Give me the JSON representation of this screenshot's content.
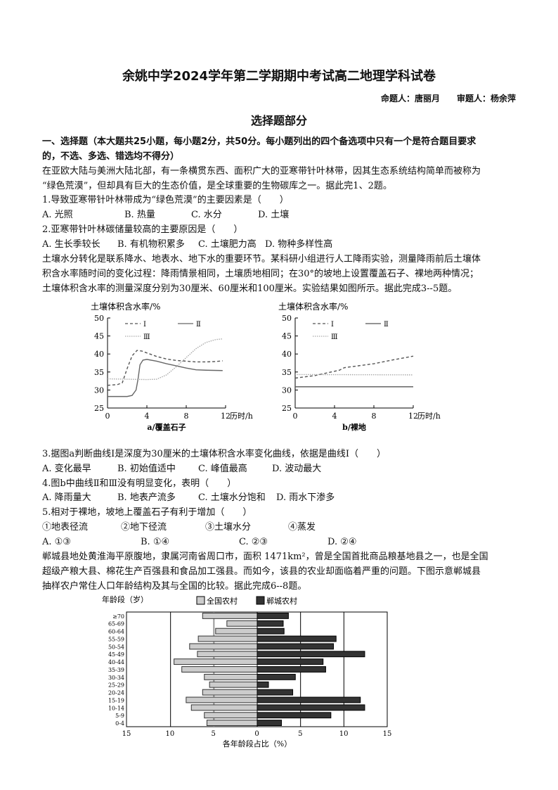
{
  "title": "余姚中学2024学年第二学期期中考试高二地理学科试卷",
  "authors": "命题人：唐丽月　　审题人：杨余萍",
  "section": "选择题部分",
  "instructions": [
    "一、选择题（本大题共25小题，每小题2分，共50分。每小题列出的四个备选项中只有一个是符合题目要求",
    "的，不选、多选、错选均不得分）"
  ],
  "passage1": [
    "在亚欧大陆与美洲大陆北部，有一条横贯东西、面积广大的亚寒带针叶林带，因其生态系统结构简单而被称为",
    "“绿色荒漠”，但却具有巨大的生态价值，是全球重要的生物碳库之一。据此完1、2题。"
  ],
  "q1": {
    "stem": "1.导致亚寒带针叶林带成为“绿色荒漠”的主要因素是（　　）",
    "options": [
      "A. 光照",
      "B. 热量",
      "C. 水分",
      "D. 土壤"
    ]
  },
  "q2": {
    "stem": "2.亚寒带针叶林碳储量较高的主要原因是（　　）",
    "options": [
      "A. 生长季较长",
      "B. 有机物积累多",
      "C. 土壤肥力高",
      "D. 物种多样性高"
    ]
  },
  "passage2": [
    "土壤水分转化是联系降水、地表水、地下水的重要环节。某科研小组进行人工降雨实验，测量降雨前后土壤体",
    "积含水率随时间的变化过程：降雨情景相同，土壤质地相同；在30°的坡地上设置覆盖石子、裸地两种情况；",
    "土壤体积含水率的测量深度分别为30厘米、60厘米和100厘米。实验结果如图所示。据此完成3--5题。"
  ],
  "q3": {
    "stem": "3.据图a判断曲线Ⅰ是深度为30厘米的土壤体积含水率变化曲线，依据是曲线Ⅰ（　　）",
    "options": [
      "A. 变化最早",
      "B. 初始值适中",
      "C. 峰值最高",
      "D. 波动最大"
    ]
  },
  "q4": {
    "stem": "4.图b中曲线Ⅱ和Ⅲ没有明显变化，表明（　　）",
    "options": [
      "A. 降雨量大",
      "B. 地表产流多",
      "C. 土壤水分饱和",
      "D. 雨水下渗多"
    ]
  },
  "q5": {
    "stem": "5.相对于裸地，坡地上覆盖石子有利于增加（　　）",
    "items": [
      "①地表径流",
      "②地下径流",
      "③土壤水分",
      "④蒸发"
    ],
    "options": [
      "A. ①③",
      "B. ①④",
      "C. ②③",
      "D. ②④"
    ]
  },
  "passage3": [
    "郸城县地处黄淮海平原腹地，隶属河南省周口市，面积 1471km²，曾是全国首批商品粮基地县之一，也是全国",
    "超级产粮大县、棉花生产百强县和食品加工强县。而如今，该县的农业却面临着严重的问题。下图示意郸城县",
    "抽样农户常住人口年龄结构及其与全国的比较。据此完成6--8题。"
  ],
  "chart_data": [
    {
      "type": "line",
      "ylabel": "土壤体积含水率/%",
      "xlabel": "历时/h",
      "caption": "a/覆盖石子",
      "xlim": [
        0,
        12
      ],
      "ylim": [
        25,
        50
      ],
      "xticks": [
        0,
        4,
        8,
        12
      ],
      "yticks": [
        25,
        30,
        35,
        40,
        45,
        50
      ],
      "series": [
        {
          "name": "Ⅰ",
          "style": "dashed",
          "color": "#555555",
          "points": [
            [
              0,
              31.3
            ],
            [
              1,
              31.5
            ],
            [
              1.5,
              32
            ],
            [
              2,
              36
            ],
            [
              2.5,
              39.5
            ],
            [
              3,
              41
            ],
            [
              3.5,
              40.8
            ],
            [
              4,
              40.3
            ],
            [
              5,
              39.3
            ],
            [
              6,
              38.6
            ],
            [
              7,
              38.2
            ],
            [
              8,
              38
            ],
            [
              9,
              37.8
            ],
            [
              10,
              37.8
            ],
            [
              11,
              37.9
            ],
            [
              11.7,
              38.1
            ]
          ]
        },
        {
          "name": "Ⅱ",
          "style": "solid",
          "color": "#666666",
          "points": [
            [
              0,
              28.2
            ],
            [
              2,
              28.2
            ],
            [
              2.5,
              28.5
            ],
            [
              2.9,
              30
            ],
            [
              3.1,
              33
            ],
            [
              3.3,
              37
            ],
            [
              3.6,
              38.3
            ],
            [
              4,
              38.5
            ],
            [
              5,
              38
            ],
            [
              6,
              37.3
            ],
            [
              7,
              36.7
            ],
            [
              8,
              36.1
            ],
            [
              9,
              35.6
            ],
            [
              10,
              35.5
            ],
            [
              11.7,
              35.4
            ]
          ]
        },
        {
          "name": "Ⅲ",
          "style": "dotted",
          "color": "#aaaaaa",
          "points": [
            [
              0,
              33.1
            ],
            [
              2,
              33
            ],
            [
              4,
              32.9
            ],
            [
              5,
              33
            ],
            [
              6,
              34.2
            ],
            [
              7,
              36.5
            ],
            [
              8,
              39
            ],
            [
              9,
              41.5
            ],
            [
              10,
              43.2
            ],
            [
              11,
              44
            ],
            [
              11.7,
              44.2
            ]
          ]
        }
      ]
    },
    {
      "type": "line",
      "ylabel": "土壤体积含水率/%",
      "xlabel": "历时/h",
      "caption": "b/裸地",
      "xlim": [
        0,
        12
      ],
      "ylim": [
        25,
        50
      ],
      "xticks": [
        0,
        4,
        8,
        12
      ],
      "yticks": [
        25,
        30,
        35,
        40,
        45,
        50
      ],
      "series": [
        {
          "name": "Ⅰ",
          "style": "dashed",
          "color": "#555555",
          "points": [
            [
              0,
              33.3
            ],
            [
              2,
              34
            ],
            [
              4,
              35.2
            ],
            [
              4.5,
              35.5
            ],
            [
              5,
              36.2
            ],
            [
              8,
              37.3
            ],
            [
              10,
              38.4
            ],
            [
              12,
              39.4
            ]
          ]
        },
        {
          "name": "Ⅱ",
          "style": "solid",
          "color": "#555555",
          "points": [
            [
              0,
              30.9
            ],
            [
              12,
              30.9
            ]
          ]
        },
        {
          "name": "Ⅲ",
          "style": "dotted",
          "color": "#aaaaaa",
          "points": [
            [
              0,
              34.3
            ],
            [
              12,
              34.2
            ]
          ]
        }
      ]
    },
    {
      "type": "bar",
      "orientation": "horizontal-pyramid",
      "ylabel": "年龄段（岁）",
      "xlabel": "各年龄段占比（%）",
      "xlim": [
        -15,
        15
      ],
      "xticks": [
        "15",
        "10",
        "5",
        "0",
        "5",
        "10",
        "15"
      ],
      "categories": [
        "≥70",
        "65-69",
        "60-64",
        "55-59",
        "50-54",
        "45-49",
        "40-44",
        "35-39",
        "30-34",
        "25-29",
        "20-24",
        "15-19",
        "10-14",
        "5-9",
        "0-4"
      ],
      "series": [
        {
          "name": "全国农村",
          "color": "#cccccc",
          "side": "left",
          "values": [
            6.3,
            3.5,
            4.8,
            6.8,
            7.8,
            6.9,
            9.6,
            8.7,
            6.1,
            5.5,
            6.3,
            8.2,
            7.6,
            6.1,
            5.8
          ]
        },
        {
          "name": "郸城农村",
          "color": "#333333",
          "side": "right",
          "values": [
            3.6,
            3.0,
            3.1,
            9.1,
            8.8,
            12.4,
            7.6,
            7.9,
            4.4,
            1.3,
            4.1,
            11.9,
            12.4,
            8.5,
            2.8
          ]
        }
      ]
    }
  ]
}
